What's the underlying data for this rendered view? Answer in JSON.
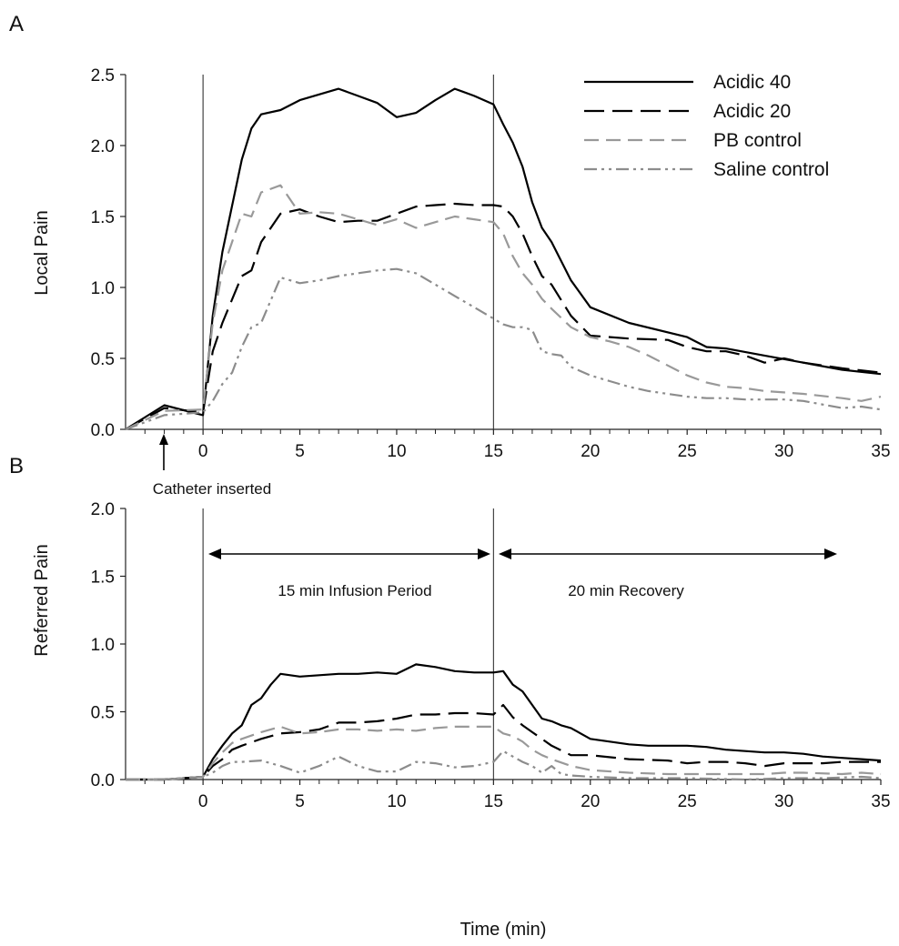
{
  "figure": {
    "panels": [
      "A",
      "B"
    ],
    "xlabel": "Time (min)"
  },
  "legend": {
    "placement": "top-right of panel A",
    "items": [
      "Acidic 40",
      "Acidic 20",
      "PB control",
      "Saline control"
    ]
  },
  "annotations": {
    "catheter": "Catheter inserted",
    "infusion": "15 min Infusion Period",
    "recovery": "20 min Recovery"
  },
  "styles": {
    "Acidic 40": {
      "color": "#000000",
      "dash": "solid"
    },
    "Acidic 20": {
      "color": "#000000",
      "dash": "long-dash"
    },
    "PB control": {
      "color": "#999999",
      "dash": "dash"
    },
    "Saline control": {
      "color": "#8c8c8c",
      "dash": "dash-dot-dot"
    }
  },
  "chart_data": [
    {
      "type": "line",
      "panel": "A",
      "ylabel": "Local Pain",
      "xlim": [
        -4,
        35
      ],
      "ylim": [
        0,
        2.5
      ],
      "xticks": [
        0,
        5,
        10,
        15,
        20,
        25,
        30,
        35
      ],
      "yticks": [
        "0.0",
        "0.5",
        "1.0",
        "1.5",
        "2.0",
        "2.5"
      ],
      "markers_x": [
        0,
        15
      ],
      "series": [
        {
          "name": "Acidic 40",
          "x": [
            -4,
            -2,
            0,
            0.5,
            1,
            2,
            2.5,
            3,
            4,
            5,
            6,
            7,
            8,
            9,
            10,
            11,
            12,
            13,
            14,
            15,
            15.5,
            16,
            16.5,
            17,
            17.5,
            18,
            19,
            20,
            22,
            25,
            26,
            27,
            29,
            31,
            33,
            35
          ],
          "y": [
            0,
            0.17,
            0.1,
            0.8,
            1.25,
            1.9,
            2.12,
            2.22,
            2.25,
            2.32,
            2.36,
            2.4,
            2.35,
            2.3,
            2.2,
            2.23,
            2.32,
            2.4,
            2.35,
            2.29,
            2.15,
            2.02,
            1.85,
            1.6,
            1.42,
            1.32,
            1.05,
            0.86,
            0.75,
            0.65,
            0.58,
            0.57,
            0.52,
            0.47,
            0.42,
            0.39
          ]
        },
        {
          "name": "Acidic 20",
          "x": [
            -4,
            -2,
            0,
            0.5,
            1,
            2,
            2.5,
            3,
            4,
            5,
            6,
            7,
            8,
            9,
            10,
            11,
            12,
            13,
            14,
            15,
            15.5,
            16,
            16.5,
            17,
            17.5,
            18,
            19,
            20,
            22,
            24,
            25,
            26,
            27,
            28,
            29,
            30,
            31,
            33,
            35
          ],
          "y": [
            0,
            0.15,
            0.12,
            0.55,
            0.75,
            1.08,
            1.12,
            1.32,
            1.52,
            1.55,
            1.5,
            1.46,
            1.47,
            1.47,
            1.52,
            1.57,
            1.58,
            1.59,
            1.58,
            1.58,
            1.57,
            1.5,
            1.38,
            1.22,
            1.08,
            1.02,
            0.8,
            0.66,
            0.64,
            0.63,
            0.58,
            0.55,
            0.55,
            0.52,
            0.47,
            0.5,
            0.47,
            0.43,
            0.4
          ]
        },
        {
          "name": "PB control",
          "x": [
            -4,
            -2,
            0,
            0.5,
            1,
            2,
            2.5,
            3,
            4,
            5,
            6,
            7,
            8,
            9,
            10,
            11,
            12,
            13,
            14,
            15,
            15.5,
            16,
            16.5,
            17,
            17.5,
            18,
            19,
            20,
            21,
            22,
            23,
            24,
            25,
            26,
            27,
            28,
            29,
            30,
            31,
            33,
            34,
            35
          ],
          "y": [
            0,
            0.13,
            0.14,
            0.75,
            1.12,
            1.52,
            1.5,
            1.67,
            1.72,
            1.52,
            1.53,
            1.52,
            1.48,
            1.44,
            1.48,
            1.42,
            1.46,
            1.5,
            1.48,
            1.46,
            1.38,
            1.22,
            1.1,
            1.02,
            0.92,
            0.85,
            0.72,
            0.65,
            0.62,
            0.58,
            0.52,
            0.45,
            0.38,
            0.33,
            0.3,
            0.29,
            0.27,
            0.26,
            0.25,
            0.22,
            0.2,
            0.23
          ]
        },
        {
          "name": "Saline control",
          "x": [
            -4,
            -2,
            0,
            0.5,
            1,
            1.5,
            2,
            2.5,
            3,
            4,
            5,
            6,
            7,
            8,
            9,
            10,
            11,
            12,
            13,
            14,
            15,
            15.5,
            16,
            16.5,
            17,
            17.5,
            18,
            18.5,
            19,
            20,
            21,
            22,
            23,
            24,
            25,
            26,
            27,
            28,
            29,
            30,
            31,
            33,
            34,
            35
          ],
          "y": [
            0,
            0.1,
            0.12,
            0.2,
            0.32,
            0.4,
            0.58,
            0.72,
            0.75,
            1.07,
            1.03,
            1.05,
            1.08,
            1.1,
            1.12,
            1.13,
            1.1,
            1.02,
            0.94,
            0.86,
            0.78,
            0.74,
            0.72,
            0.72,
            0.7,
            0.55,
            0.53,
            0.52,
            0.44,
            0.38,
            0.34,
            0.3,
            0.27,
            0.25,
            0.23,
            0.22,
            0.22,
            0.21,
            0.21,
            0.21,
            0.2,
            0.15,
            0.16,
            0.14
          ]
        }
      ]
    },
    {
      "type": "line",
      "panel": "B",
      "ylabel": "Referred Pain",
      "xlim": [
        -4,
        35
      ],
      "ylim": [
        0,
        2.0
      ],
      "xticks": [
        0,
        5,
        10,
        15,
        20,
        25,
        30,
        35
      ],
      "yticks": [
        "0.0",
        "0.5",
        "1.0",
        "1.5",
        "2.0"
      ],
      "markers_x": [
        0,
        15
      ],
      "series": [
        {
          "name": "Acidic 40",
          "x": [
            -4,
            -2,
            -1,
            0,
            0.5,
            1,
            1.5,
            2,
            2.5,
            3,
            3.5,
            4,
            5,
            6,
            7,
            8,
            9,
            10,
            11,
            12,
            13,
            14,
            15,
            15.5,
            16,
            16.5,
            17,
            17.5,
            18,
            18.5,
            19,
            20,
            21,
            22,
            23,
            24,
            25,
            26,
            27,
            28,
            29,
            30,
            31,
            32,
            33,
            34,
            35
          ],
          "y": [
            0,
            0,
            0.01,
            0.02,
            0.15,
            0.25,
            0.34,
            0.4,
            0.55,
            0.6,
            0.7,
            0.78,
            0.76,
            0.77,
            0.78,
            0.78,
            0.79,
            0.78,
            0.85,
            0.83,
            0.8,
            0.79,
            0.79,
            0.8,
            0.7,
            0.65,
            0.55,
            0.45,
            0.43,
            0.4,
            0.38,
            0.3,
            0.28,
            0.26,
            0.25,
            0.25,
            0.25,
            0.24,
            0.22,
            0.21,
            0.2,
            0.2,
            0.19,
            0.17,
            0.16,
            0.15,
            0.14
          ]
        },
        {
          "name": "Acidic 20",
          "x": [
            -4,
            -2,
            -1,
            0,
            0.5,
            1,
            1.5,
            2,
            3,
            4,
            5,
            6,
            7,
            8,
            9,
            10,
            11,
            12,
            13,
            14,
            15,
            15.5,
            16,
            16.5,
            17,
            17.5,
            18,
            19,
            20,
            22,
            24,
            25,
            26,
            27,
            28,
            29,
            30,
            31,
            32,
            33,
            35
          ],
          "y": [
            0,
            0,
            0.01,
            0.02,
            0.1,
            0.15,
            0.22,
            0.25,
            0.3,
            0.34,
            0.35,
            0.37,
            0.42,
            0.42,
            0.43,
            0.45,
            0.48,
            0.48,
            0.49,
            0.49,
            0.48,
            0.55,
            0.46,
            0.4,
            0.35,
            0.3,
            0.25,
            0.18,
            0.18,
            0.15,
            0.14,
            0.12,
            0.13,
            0.13,
            0.12,
            0.1,
            0.12,
            0.12,
            0.12,
            0.13,
            0.13
          ]
        },
        {
          "name": "PB control",
          "x": [
            -4,
            -2,
            -1,
            0,
            0.5,
            1,
            1.5,
            2,
            3,
            4,
            5,
            6,
            7,
            8,
            9,
            10,
            11,
            12,
            13,
            14,
            15,
            15.5,
            16,
            16.5,
            17,
            17.5,
            18,
            19,
            20,
            22,
            24,
            25,
            27,
            29,
            30,
            31,
            33,
            34,
            35
          ],
          "y": [
            0,
            0,
            0.01,
            0.02,
            0.12,
            0.2,
            0.27,
            0.3,
            0.35,
            0.39,
            0.34,
            0.35,
            0.37,
            0.37,
            0.36,
            0.37,
            0.36,
            0.38,
            0.39,
            0.39,
            0.39,
            0.34,
            0.32,
            0.28,
            0.22,
            0.18,
            0.15,
            0.1,
            0.07,
            0.05,
            0.04,
            0.04,
            0.04,
            0.04,
            0.05,
            0.05,
            0.04,
            0.05,
            0.04
          ]
        },
        {
          "name": "Saline control",
          "x": [
            -4,
            -2,
            -1,
            0,
            0.5,
            1,
            1.5,
            2,
            3,
            4,
            5,
            6,
            7,
            8,
            9,
            10,
            11,
            12,
            13,
            14,
            15,
            15.5,
            16,
            16.5,
            17,
            17.5,
            18,
            18.5,
            19,
            20,
            22,
            25,
            28,
            30,
            32,
            34,
            35
          ],
          "y": [
            0,
            0,
            0.01,
            0.02,
            0.05,
            0.1,
            0.13,
            0.13,
            0.14,
            0.1,
            0.05,
            0.1,
            0.17,
            0.1,
            0.06,
            0.06,
            0.13,
            0.12,
            0.09,
            0.1,
            0.13,
            0.21,
            0.17,
            0.13,
            0.1,
            0.05,
            0.1,
            0.04,
            0.03,
            0.02,
            0.01,
            0.01,
            0.0,
            0.01,
            0.01,
            0.02,
            0.01
          ]
        }
      ]
    }
  ]
}
